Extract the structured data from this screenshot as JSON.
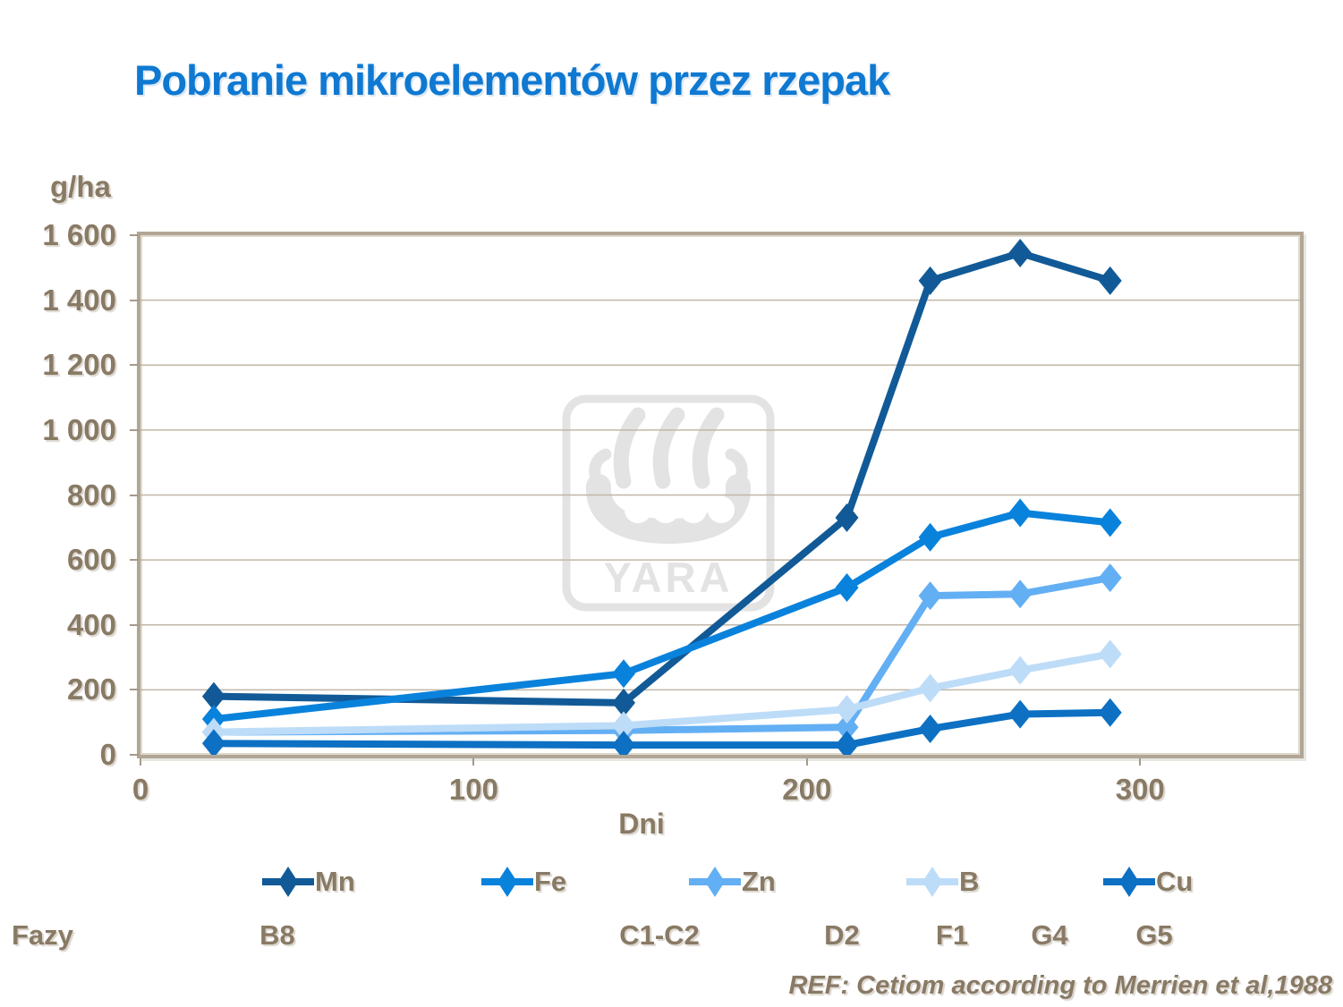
{
  "title": "Pobranie mikroelementów przez rzepak",
  "y_axis": {
    "unit_label": "g/ha",
    "tick_labels": [
      "1 600",
      "1 400",
      "1 200",
      "1 000",
      "800",
      "600",
      "400",
      "200",
      "0"
    ]
  },
  "x_axis": {
    "title": "Dni",
    "tick_labels": [
      "0",
      "100",
      "200",
      "300"
    ]
  },
  "phases": {
    "row_label": "Fazy",
    "items": [
      "B8",
      "C1-C2",
      "D2",
      "F1",
      "G4",
      "G5"
    ]
  },
  "reference": "REF: Cetiom according to Merrien et al,1988",
  "watermark_text": "YARA",
  "colors": {
    "title": "#0F79D2",
    "axis_text": "#897A65",
    "gridline": "#C0B6A8",
    "frame": "#B1A695",
    "watermark": "#E3E3E3",
    "mn": "#115A97",
    "fe": "#0982DC",
    "zn": "#63AFF4",
    "b": "#BDDCF8",
    "cu": "#0D70C3"
  },
  "chart_data": {
    "type": "line",
    "title": "Pobranie mikroelementów przez rzepak",
    "xlabel": "Dni",
    "ylabel": "g/ha",
    "x": [
      22,
      145,
      212,
      237,
      264,
      291
    ],
    "xlim": [
      0,
      348
    ],
    "ylim": [
      0,
      1600
    ],
    "x_ticks": [
      0,
      100,
      200,
      300
    ],
    "y_ticks": [
      0,
      200,
      400,
      600,
      800,
      1000,
      1200,
      1400,
      1600
    ],
    "grid": "horizontal",
    "legend_position": "bottom",
    "marker": "diamond",
    "series": [
      {
        "name": "Mn",
        "color": "#115A97",
        "values": [
          180,
          160,
          730,
          1460,
          1545,
          1460
        ]
      },
      {
        "name": "Fe",
        "color": "#0982DC",
        "values": [
          110,
          250,
          515,
          670,
          745,
          715
        ]
      },
      {
        "name": "Zn",
        "color": "#63AFF4",
        "values": [
          70,
          75,
          85,
          490,
          495,
          545
        ]
      },
      {
        "name": "B",
        "color": "#BDDCF8",
        "values": [
          70,
          90,
          140,
          205,
          260,
          310
        ]
      },
      {
        "name": "Cu",
        "color": "#0D70C3",
        "values": [
          35,
          30,
          30,
          80,
          125,
          130
        ]
      }
    ],
    "phase_annotations": [
      "B8",
      "C1-C2",
      "D2",
      "F1",
      "G4",
      "G5"
    ]
  }
}
